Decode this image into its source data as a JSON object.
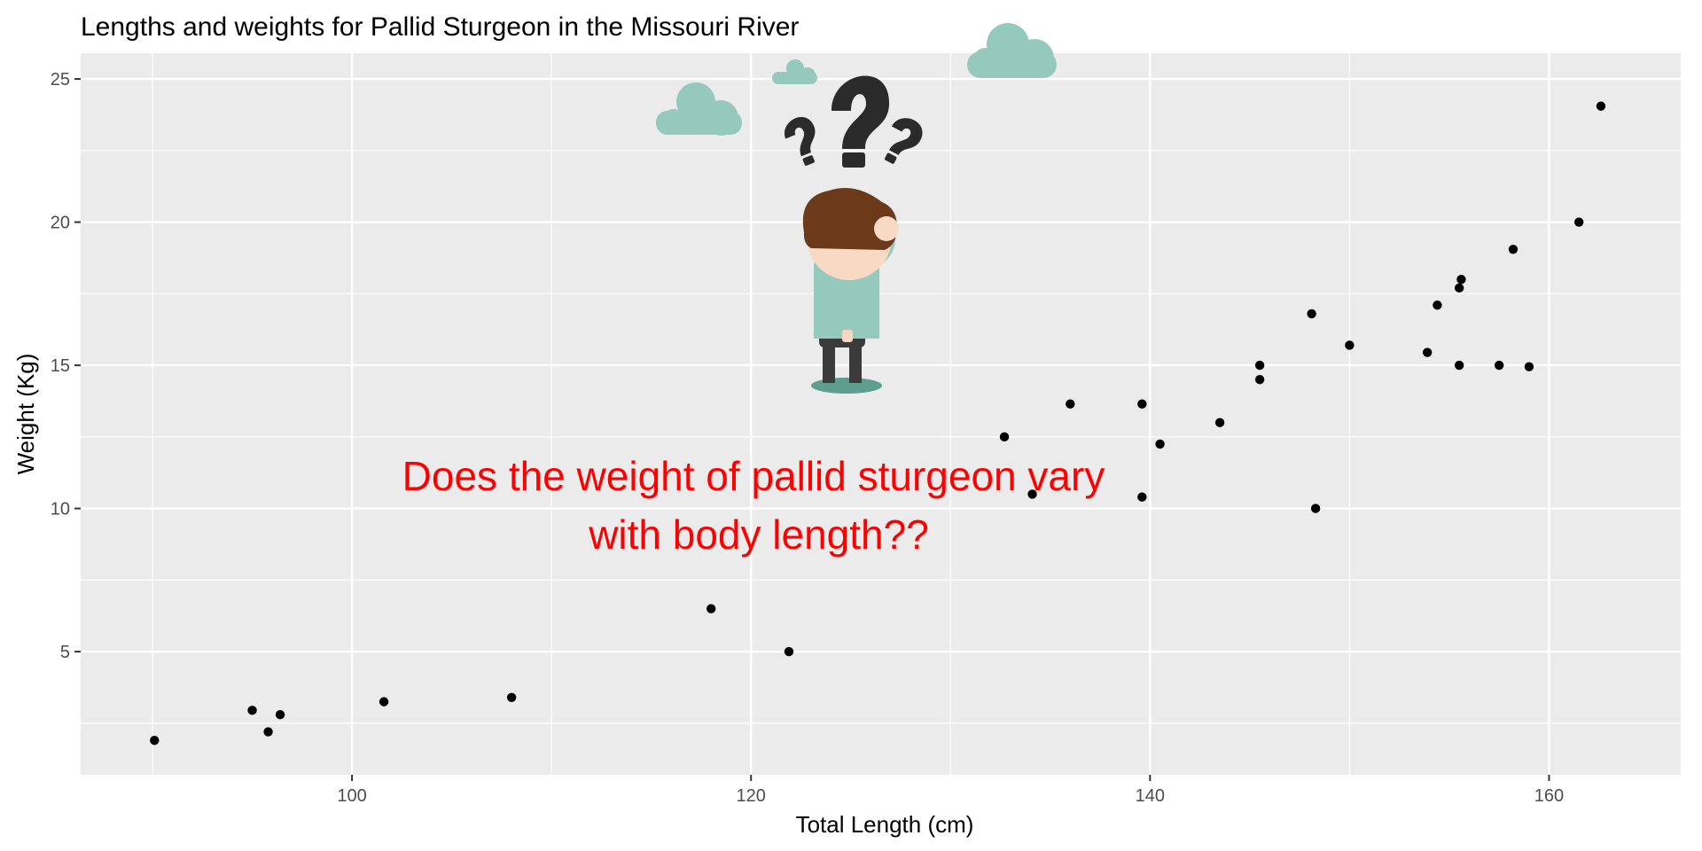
{
  "chart_data": {
    "type": "scatter",
    "title": "Lengths and weights for Pallid Sturgeon in the Missouri River",
    "xlabel": "Total Length (cm)",
    "ylabel": "Weight (Kg)",
    "xlim": [
      86.4,
      166.6
    ],
    "ylim": [
      0.7,
      25.9
    ],
    "x_ticks": [
      100,
      120,
      140,
      160
    ],
    "y_ticks": [
      5,
      10,
      15,
      20,
      25
    ],
    "grid": true,
    "legend": "none",
    "panel_color": "#ebebeb",
    "grid_color": "#ffffff",
    "point_color": "#000000",
    "annotation": {
      "lines": [
        "Does the weight of pallid sturgeon vary",
        "with body length??"
      ],
      "color": "#ff0000"
    },
    "illustration": "person-scratching-head-with-question-marks-and-clouds",
    "points": [
      {
        "x": 90.1,
        "y": 1.9
      },
      {
        "x": 95.0,
        "y": 2.95
      },
      {
        "x": 95.8,
        "y": 2.2
      },
      {
        "x": 96.4,
        "y": 2.8
      },
      {
        "x": 101.6,
        "y": 3.25
      },
      {
        "x": 108.0,
        "y": 3.4
      },
      {
        "x": 118.0,
        "y": 6.5
      },
      {
        "x": 121.9,
        "y": 5.0
      },
      {
        "x": 132.7,
        "y": 12.5
      },
      {
        "x": 134.1,
        "y": 10.5
      },
      {
        "x": 136.0,
        "y": 13.65
      },
      {
        "x": 139.6,
        "y": 13.65
      },
      {
        "x": 139.6,
        "y": 10.4
      },
      {
        "x": 140.5,
        "y": 12.25
      },
      {
        "x": 143.5,
        "y": 13.0
      },
      {
        "x": 145.5,
        "y": 15.0
      },
      {
        "x": 145.5,
        "y": 14.5
      },
      {
        "x": 148.1,
        "y": 16.8
      },
      {
        "x": 148.3,
        "y": 10.0
      },
      {
        "x": 150.0,
        "y": 15.7
      },
      {
        "x": 153.9,
        "y": 15.45
      },
      {
        "x": 154.4,
        "y": 17.1
      },
      {
        "x": 155.5,
        "y": 15.0
      },
      {
        "x": 155.5,
        "y": 17.7
      },
      {
        "x": 155.6,
        "y": 18.0
      },
      {
        "x": 157.5,
        "y": 15.0
      },
      {
        "x": 158.2,
        "y": 19.05
      },
      {
        "x": 159.0,
        "y": 14.95
      },
      {
        "x": 161.5,
        "y": 20.0
      },
      {
        "x": 162.6,
        "y": 24.05
      }
    ]
  }
}
